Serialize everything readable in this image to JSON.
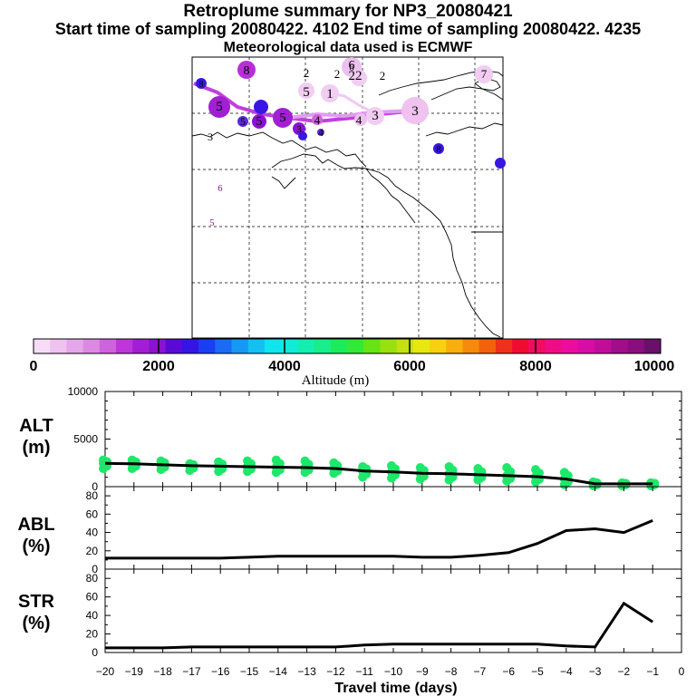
{
  "header": {
    "title": "Retroplume summary for NP3_20080421",
    "sampling_line": "Start time of sampling 20080422.  4102     End time of sampling 20080422.  4235",
    "met_line": "Meteorological data used is ECMWF"
  },
  "colorbar": {
    "xlabel": "Altitude (m)",
    "ticks": [
      "0",
      "2000",
      "4000",
      "6000",
      "8000",
      "10000"
    ],
    "colors": [
      "#f7dcf7",
      "#efc2ef",
      "#e6a6ea",
      "#dd89e4",
      "#cf62dd",
      "#bd36d8",
      "#a21ed4",
      "#8a13d0",
      "#5a0ad6",
      "#3515e6",
      "#1a3ef2",
      "#1a6cf4",
      "#1898f4",
      "#14c0f2",
      "#10e4ee",
      "#10ecd8",
      "#14eeb0",
      "#18ee8a",
      "#1cec5c",
      "#34e838",
      "#66e414",
      "#98e010",
      "#c4e010",
      "#e8e810",
      "#f8d010",
      "#f8ae0c",
      "#f68a0c",
      "#f2620c",
      "#f0301a",
      "#f00c30",
      "#f00c60",
      "#f00c86",
      "#ec0ca0",
      "#d80ca6",
      "#c00e9a",
      "#a00e8a",
      "#8a0f7e",
      "#6a0f6a"
    ]
  },
  "map": {
    "day_labels": [
      "2",
      "2",
      "22",
      "6",
      "5",
      "1",
      "2",
      "8",
      "3",
      "5",
      "5",
      "5",
      "5",
      "4",
      "4",
      "4",
      "3",
      "3",
      "7",
      "8",
      "3",
      "6",
      "6",
      "5",
      "8"
    ]
  },
  "chart_data": [
    {
      "type": "line",
      "panel": "ALT",
      "ylabel": "ALT\n(m)",
      "ylabel_lines": [
        "ALT",
        "(m)"
      ],
      "ylim": [
        0,
        10000
      ],
      "yticks": [
        "10000",
        "5000",
        "0"
      ],
      "x": [
        -20,
        -19,
        -18,
        -17,
        -16,
        -15,
        -14,
        -13,
        -12,
        -11,
        -10,
        -9,
        -8,
        -7,
        -6,
        -5,
        -4,
        -3,
        -2,
        -1
      ],
      "series": [
        {
          "name": "median altitude",
          "values": [
            2450,
            2400,
            2300,
            2200,
            2150,
            2100,
            2050,
            2000,
            1900,
            1650,
            1550,
            1400,
            1350,
            1250,
            1150,
            1050,
            800,
            300,
            300,
            300
          ]
        },
        {
          "name": "altitude spread (upper)",
          "values": [
            2800,
            2800,
            2700,
            2400,
            2600,
            2700,
            2800,
            2700,
            2500,
            2100,
            2200,
            2000,
            2100,
            1900,
            2000,
            1800,
            1500,
            500,
            400,
            400
          ]
        },
        {
          "name": "altitude spread (lower)",
          "values": [
            1900,
            1900,
            1800,
            1700,
            1600,
            1600,
            1500,
            1500,
            1400,
            1000,
            900,
            800,
            700,
            700,
            600,
            500,
            200,
            100,
            100,
            100
          ]
        }
      ]
    },
    {
      "type": "line",
      "panel": "ABL",
      "ylabel": "ABL\n(%)",
      "ylabel_lines": [
        "ABL",
        "(%)"
      ],
      "ylim": [
        0,
        90
      ],
      "yticks": [
        "80",
        "60",
        "40",
        "20",
        "0"
      ],
      "x": [
        -20,
        -19,
        -18,
        -17,
        -16,
        -15,
        -14,
        -13,
        -12,
        -11,
        -10,
        -9,
        -8,
        -7,
        -6,
        -5,
        -4,
        -3,
        -2,
        -1
      ],
      "series": [
        {
          "name": "ABL",
          "values": [
            12,
            12,
            12,
            12,
            12,
            13,
            14,
            14,
            14,
            14,
            14,
            13,
            13,
            15,
            18,
            28,
            42,
            44,
            40,
            53
          ]
        }
      ]
    },
    {
      "type": "line",
      "panel": "STR",
      "ylabel": "STR\n(%)",
      "ylabel_lines": [
        "STR",
        "(%)"
      ],
      "ylim": [
        0,
        90
      ],
      "yticks": [
        "80",
        "60",
        "40",
        "20",
        "0"
      ],
      "x": [
        -20,
        -19,
        -18,
        -17,
        -16,
        -15,
        -14,
        -13,
        -12,
        -11,
        -10,
        -9,
        -8,
        -7,
        -6,
        -5,
        -4,
        -3,
        -2,
        -1
      ],
      "series": [
        {
          "name": "STR",
          "values": [
            5,
            5,
            5,
            6,
            6,
            6,
            6,
            6,
            6,
            8,
            9,
            9,
            9,
            9,
            9,
            9,
            7,
            6,
            53,
            33
          ]
        }
      ]
    }
  ],
  "xaxis": {
    "xlabel": "Travel time (days)",
    "ticks": [
      "−20",
      "−19",
      "−18",
      "−17",
      "−16",
      "−15",
      "−14",
      "−13",
      "−12",
      "−11",
      "−10",
      "−9",
      "−8",
      "−7",
      "−6",
      "−5",
      "−4",
      "−3",
      "−2",
      "−1",
      "0"
    ]
  }
}
